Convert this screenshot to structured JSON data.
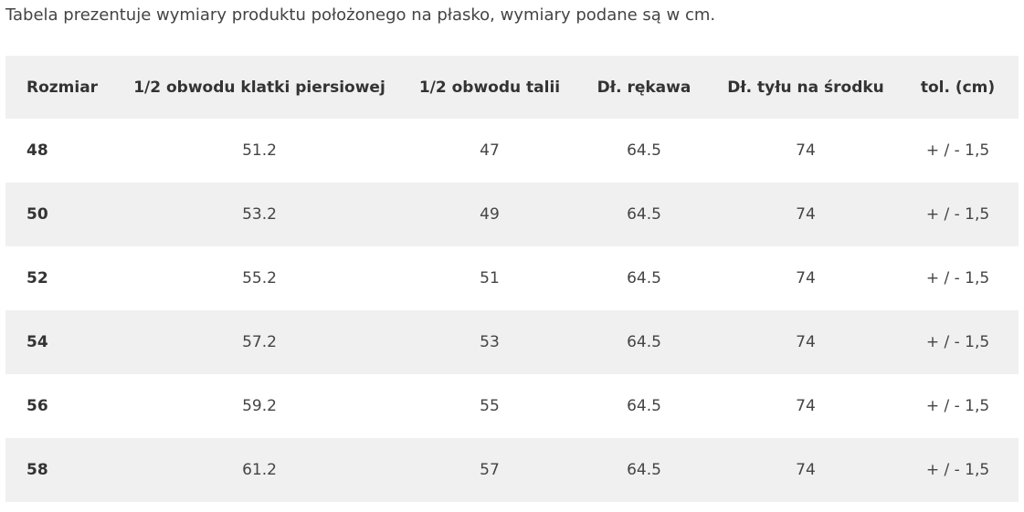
{
  "caption": "Tabela prezentuje wymiary produktu położonego na płasko, wymiary podane są w cm.",
  "table": {
    "headers": [
      "Rozmiar",
      "1/2 obwodu klatki piersiowej",
      "1/2 obwodu talii",
      "Dł. rękawa",
      "Dł. tyłu na środku",
      "tol. (cm)"
    ],
    "rows": [
      [
        "48",
        "51.2",
        "47",
        "64.5",
        "74",
        "+ / - 1,5"
      ],
      [
        "50",
        "53.2",
        "49",
        "64.5",
        "74",
        "+ / - 1,5"
      ],
      [
        "52",
        "55.2",
        "51",
        "64.5",
        "74",
        "+ / - 1,5"
      ],
      [
        "54",
        "57.2",
        "53",
        "64.5",
        "74",
        "+ / - 1,5"
      ],
      [
        "56",
        "59.2",
        "55",
        "64.5",
        "74",
        "+ / - 1,5"
      ],
      [
        "58",
        "61.2",
        "57",
        "64.5",
        "74",
        "+ / - 1,5"
      ]
    ]
  },
  "colors": {
    "stripe": "#f0f0f0",
    "text": "#333333"
  }
}
